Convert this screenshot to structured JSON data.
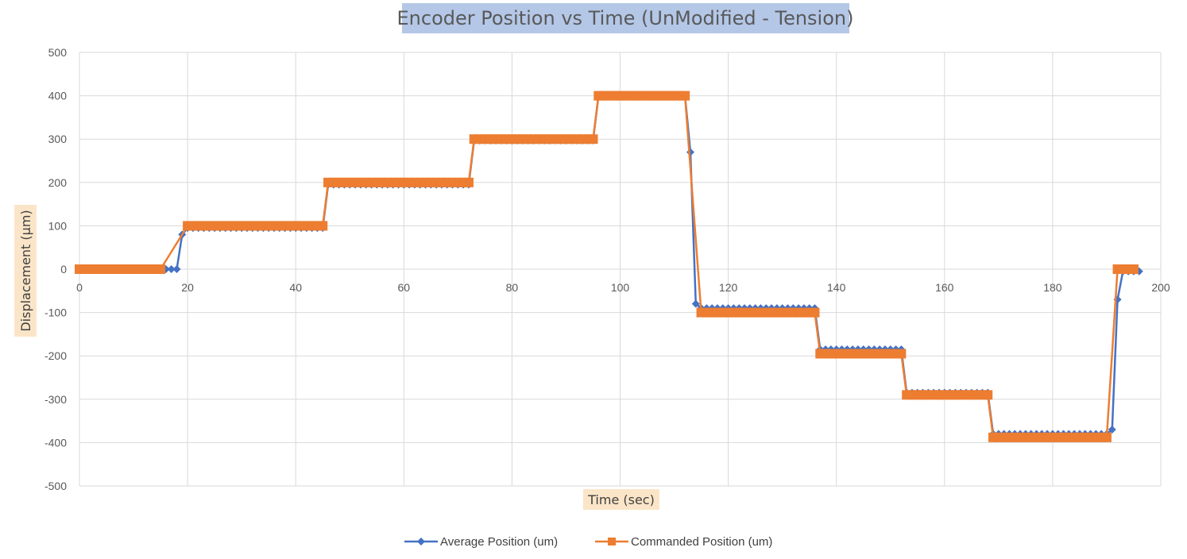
{
  "chart_data": {
    "type": "line",
    "title": "Encoder Position vs Time (UnModified - Tension)",
    "xlabel": "Time (sec)",
    "ylabel": "Displacement  (µm)",
    "xlim": [
      0,
      200
    ],
    "ylim": [
      -500,
      500
    ],
    "x_ticks": [
      0,
      20,
      40,
      60,
      80,
      100,
      120,
      140,
      160,
      180,
      200
    ],
    "y_ticks": [
      500,
      400,
      300,
      200,
      100,
      0,
      -100,
      -200,
      -300,
      -400,
      -500
    ],
    "grid": true,
    "legend_position": "bottom",
    "colors": {
      "average": "#4472C4",
      "commanded": "#ED7D31",
      "title_highlight": "#B4C7E7",
      "axis_title_highlight": "#FBE5C8",
      "grid": "#D9D9D9"
    },
    "series": [
      {
        "name": "Average Position (um)",
        "marker": "diamond",
        "segments": [
          {
            "x_start": 0,
            "x_end": 18,
            "y": 0
          },
          {
            "x": 19,
            "y": 80
          },
          {
            "x_start": 20,
            "x_end": 45,
            "y": 95
          },
          {
            "x_start": 46,
            "x_end": 72,
            "y": 195
          },
          {
            "x_start": 73,
            "x_end": 95,
            "y": 297
          },
          {
            "x_start": 96,
            "x_end": 112,
            "y": 400
          },
          {
            "x": 113,
            "y": 270
          },
          {
            "x": 114,
            "y": -80
          },
          {
            "x_start": 115,
            "x_end": 136,
            "y": -90
          },
          {
            "x_start": 137,
            "x_end": 152,
            "y": -185
          },
          {
            "x_start": 153,
            "x_end": 168,
            "y": -285
          },
          {
            "x_start": 169,
            "x_end": 190,
            "y": -380
          },
          {
            "x": 191,
            "y": -370
          },
          {
            "x": 192,
            "y": -70
          },
          {
            "x_start": 193,
            "x_end": 196,
            "y": -5
          }
        ]
      },
      {
        "name": "Commanded Position (um)",
        "marker": "square",
        "segments": [
          {
            "x_start": 0,
            "x_end": 15,
            "y": 0
          },
          {
            "x_start": 20,
            "x_end": 45,
            "y": 100
          },
          {
            "x_start": 46,
            "x_end": 72,
            "y": 200
          },
          {
            "x_start": 73,
            "x_end": 95,
            "y": 300
          },
          {
            "x_start": 96,
            "x_end": 112,
            "y": 400
          },
          {
            "x_start": 115,
            "x_end": 136,
            "y": -100
          },
          {
            "x_start": 137,
            "x_end": 152,
            "y": -195
          },
          {
            "x_start": 153,
            "x_end": 168,
            "y": -290
          },
          {
            "x_start": 169,
            "x_end": 190,
            "y": -388
          },
          {
            "x_start": 192,
            "x_end": 195,
            "y": 0
          }
        ]
      }
    ]
  }
}
